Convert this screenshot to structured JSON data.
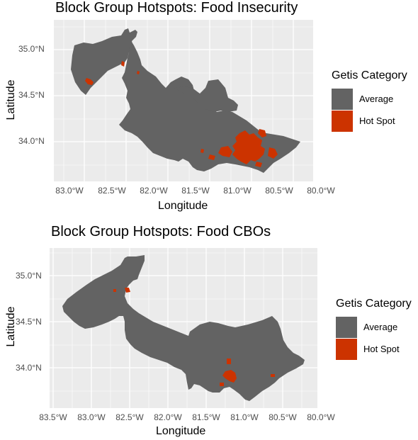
{
  "colors": {
    "average": "#636363",
    "hot_spot": "#cc3300",
    "panel_bg": "#ebebeb",
    "grid": "#ffffff"
  },
  "maps": [
    {
      "title": "Block Group Hotspots: Food Insecurity",
      "xlabel": "Longitude",
      "ylabel": "Latitude",
      "x_ticks": [
        "83.0°W",
        "82.5°W",
        "82.0°W",
        "81.5°W",
        "81.0°W",
        "80.5°W",
        "80.0°W"
      ],
      "y_ticks": [
        "35.0°N",
        "34.5°N",
        "34.0°N"
      ],
      "legend": {
        "title": "Getis Category",
        "items": [
          {
            "label": "Average",
            "color_key": "average"
          },
          {
            "label": "Hot Spot",
            "color_key": "hot_spot"
          }
        ]
      }
    },
    {
      "title": "Block Group Hotspots: Food CBOs",
      "xlabel": "Longitude",
      "ylabel": "Latitude",
      "x_ticks": [
        "83.5°W",
        "83.0°W",
        "82.5°W",
        "82.0°W",
        "81.5°W",
        "81.0°W",
        "80.5°W",
        "80.0°W"
      ],
      "y_ticks": [
        "35.0°N",
        "34.5°N",
        "34.0°N"
      ],
      "legend": {
        "title": "Getis Category",
        "items": [
          {
            "label": "Average",
            "color_key": "average"
          },
          {
            "label": "Hot Spot",
            "color_key": "hot_spot"
          }
        ]
      }
    }
  ]
}
